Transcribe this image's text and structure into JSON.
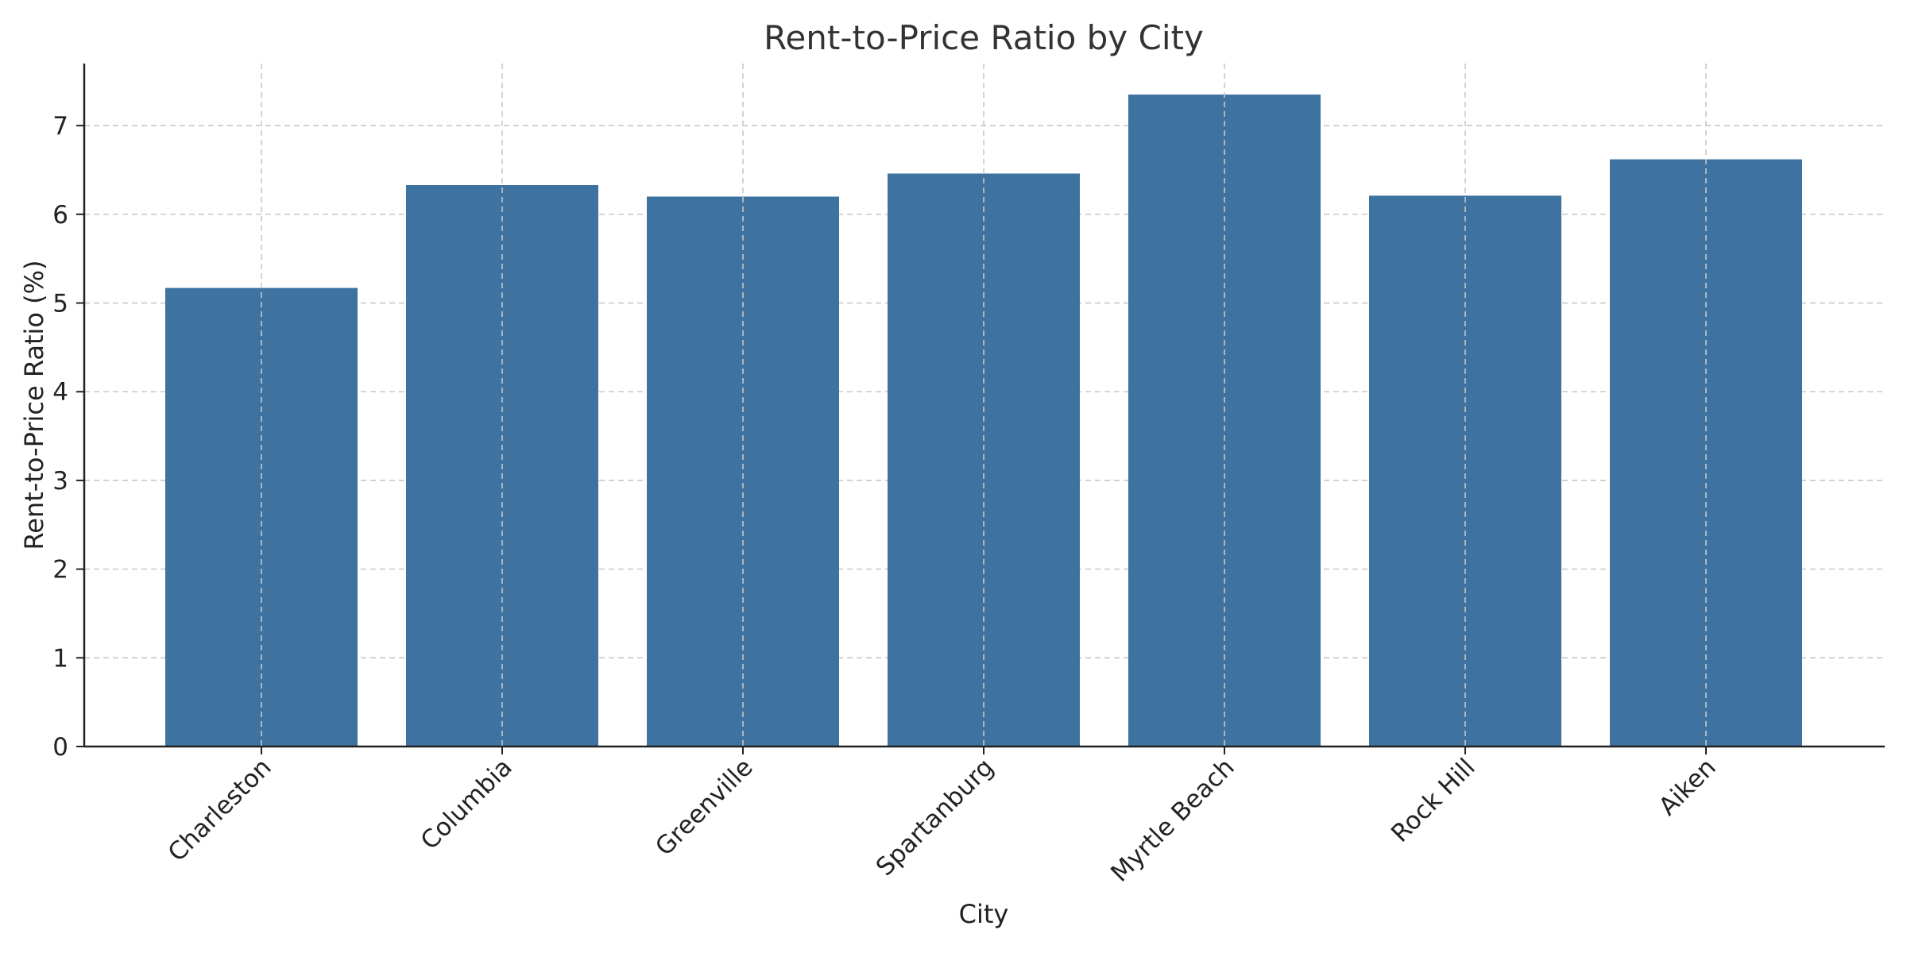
{
  "chart_data": {
    "type": "bar",
    "title": "Rent-to-Price Ratio by City",
    "xlabel": "City",
    "ylabel": "Rent-to-Price Ratio (%)",
    "categories": [
      "Charleston",
      "Columbia",
      "Greenville",
      "Spartanburg",
      "Myrtle Beach",
      "Rock Hill",
      "Aiken"
    ],
    "values": [
      5.17,
      6.33,
      6.2,
      6.46,
      7.35,
      6.21,
      6.62
    ],
    "ylim": [
      0,
      7.7
    ],
    "yticks": [
      0,
      1,
      2,
      3,
      4,
      5,
      6,
      7
    ],
    "grid": true,
    "bar_color": "#3e72a1"
  }
}
